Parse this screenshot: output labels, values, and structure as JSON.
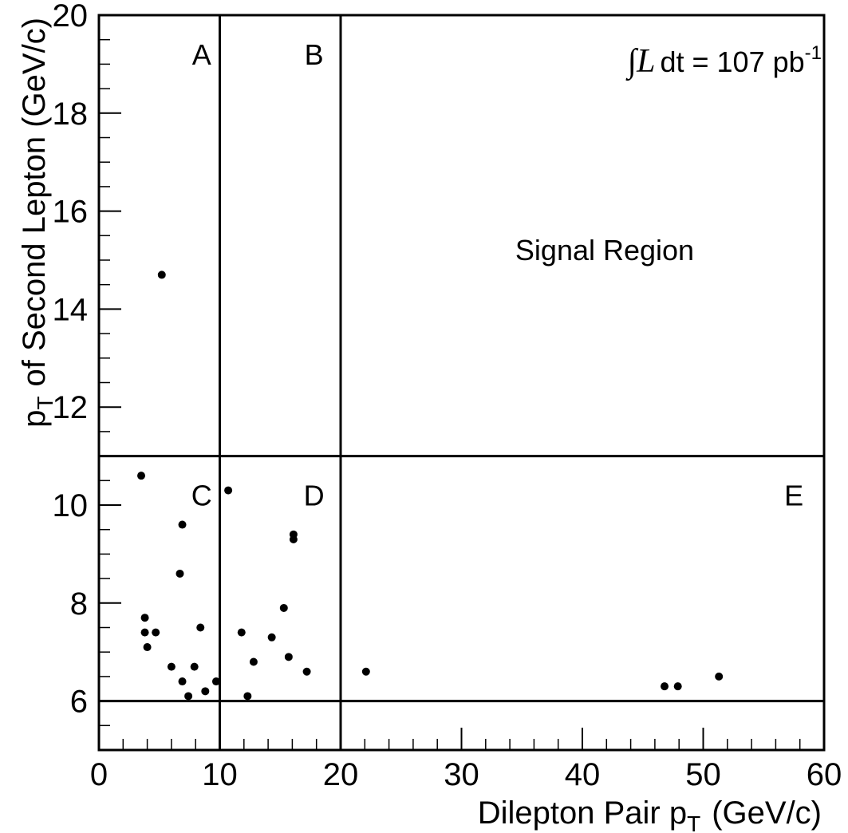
{
  "chart_data": {
    "type": "scatter",
    "xlabel_main": "Dilepton Pair p",
    "xlabel_sub": "T",
    "xlabel_unit": "(GeV/c)",
    "ylabel_main": "p",
    "ylabel_sub": "T",
    "ylabel_rest": "of Second Lepton (GeV/c)",
    "xlim": [
      0,
      60
    ],
    "ylim": [
      5,
      20
    ],
    "x_ticks": [
      "0",
      "10",
      "20",
      "30",
      "40",
      "50",
      "60"
    ],
    "y_ticks": [
      "6",
      "8",
      "10",
      "12",
      "14",
      "16",
      "18",
      "20"
    ],
    "grid": false,
    "annotations": {
      "luminosity_integral": "∫",
      "luminosity_symbol": "L",
      "luminosity_text": "dt = 107 pb",
      "luminosity_exp": "-1",
      "signal_region": "Signal Region"
    },
    "regions": [
      {
        "label": "A",
        "x": 8.5,
        "y": 19.2
      },
      {
        "label": "B",
        "x": 17.8,
        "y": 19.2
      },
      {
        "label": "C",
        "x": 8.5,
        "y": 10.2
      },
      {
        "label": "D",
        "x": 17.8,
        "y": 10.2
      },
      {
        "label": "E",
        "x": 57.5,
        "y": 10.2
      }
    ],
    "cut_lines": [
      {
        "x": [
          10,
          10
        ],
        "y": [
          5,
          20
        ]
      },
      {
        "x": [
          20,
          20
        ],
        "y": [
          5,
          20
        ]
      },
      {
        "x": [
          0,
          60
        ],
        "y": [
          11,
          11
        ]
      },
      {
        "x": [
          0,
          60
        ],
        "y": [
          6,
          6
        ]
      }
    ],
    "points": [
      {
        "x": 5.2,
        "y": 14.7
      },
      {
        "x": 3.5,
        "y": 10.6
      },
      {
        "x": 6.9,
        "y": 9.6
      },
      {
        "x": 6.7,
        "y": 8.6
      },
      {
        "x": 3.8,
        "y": 7.7
      },
      {
        "x": 3.8,
        "y": 7.4
      },
      {
        "x": 4.7,
        "y": 7.4
      },
      {
        "x": 4.0,
        "y": 7.1
      },
      {
        "x": 8.4,
        "y": 7.5
      },
      {
        "x": 6.0,
        "y": 6.7
      },
      {
        "x": 7.9,
        "y": 6.7
      },
      {
        "x": 6.9,
        "y": 6.4
      },
      {
        "x": 9.7,
        "y": 6.4
      },
      {
        "x": 8.8,
        "y": 6.2
      },
      {
        "x": 7.4,
        "y": 6.1
      },
      {
        "x": 10.7,
        "y": 10.3
      },
      {
        "x": 16.1,
        "y": 9.4
      },
      {
        "x": 16.1,
        "y": 9.3
      },
      {
        "x": 15.3,
        "y": 7.9
      },
      {
        "x": 11.8,
        "y": 7.4
      },
      {
        "x": 14.3,
        "y": 7.3
      },
      {
        "x": 15.7,
        "y": 6.9
      },
      {
        "x": 12.8,
        "y": 6.8
      },
      {
        "x": 17.2,
        "y": 6.6
      },
      {
        "x": 12.3,
        "y": 6.1
      },
      {
        "x": 22.1,
        "y": 6.6
      },
      {
        "x": 46.8,
        "y": 6.3
      },
      {
        "x": 47.9,
        "y": 6.3
      },
      {
        "x": 51.3,
        "y": 6.5
      }
    ]
  }
}
